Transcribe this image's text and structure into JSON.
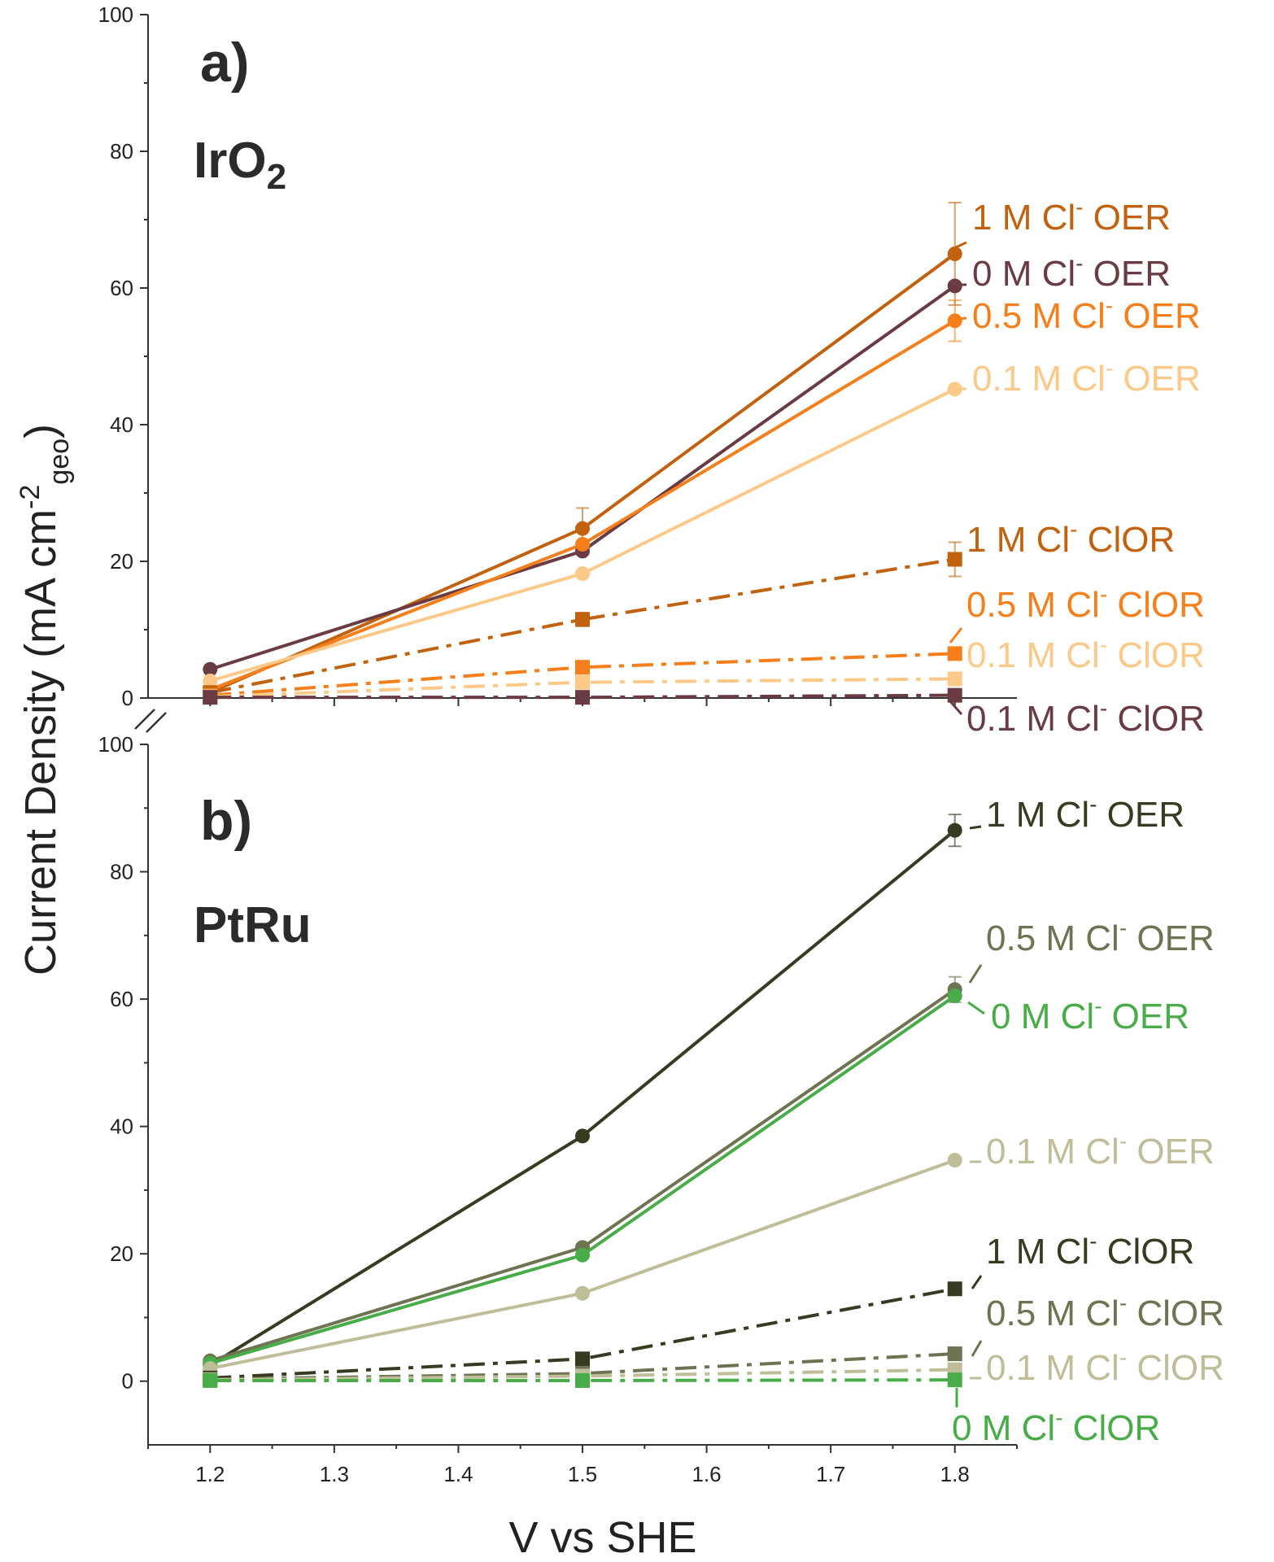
{
  "chart_data": {
    "type": "line",
    "xlabel": "V vs SHE",
    "ylabel_main": "Current Density (mA cm",
    "ylabel_sup": "-2",
    "ylabel_sub": "geo",
    "ylabel_close": ")",
    "x_ticks": [
      "1.2",
      "1.3",
      "1.4",
      "1.5",
      "1.6",
      "1.7",
      "1.8"
    ],
    "xlim": [
      1.15,
      1.85
    ],
    "panels": [
      {
        "letter": "a)",
        "name": "IrO",
        "name_sub": "2",
        "ylim": [
          0,
          100
        ],
        "y_ticks": [
          "0",
          "20",
          "40",
          "60",
          "80",
          "100"
        ],
        "series": [
          {
            "label_pre": "1 M Cl",
            "label_post": " OER",
            "color": "#c2620f",
            "style": "solid",
            "marker": "circle",
            "x": [
              1.2,
              1.5,
              1.8
            ],
            "y": [
              0.8,
              24.8,
              65.0
            ],
            "err": [
              0,
              3.0,
              7.5
            ]
          },
          {
            "label_pre": "0 M Cl",
            "label_post": " OER",
            "color": "#6b3b43",
            "style": "solid",
            "marker": "circle",
            "x": [
              1.2,
              1.5,
              1.8
            ],
            "y": [
              4.2,
              21.5,
              60.3
            ],
            "err": [
              0,
              0,
              0
            ]
          },
          {
            "label_pre": "0.5 M Cl",
            "label_post": " OER",
            "color": "#f77f1b",
            "style": "solid",
            "marker": "circle",
            "x": [
              1.2,
              1.5,
              1.8
            ],
            "y": [
              1.2,
              22.5,
              55.2
            ],
            "err": [
              0,
              0,
              3.0
            ]
          },
          {
            "label_pre": "0.1 M Cl",
            "label_post": " OER",
            "color": "#fcc989",
            "style": "solid",
            "marker": "circle",
            "x": [
              1.2,
              1.5,
              1.8
            ],
            "y": [
              2.5,
              18.2,
              45.2
            ],
            "err": [
              0,
              0,
              0
            ]
          },
          {
            "label_pre": "1 M Cl",
            "label_post": " ClOR",
            "color": "#c2620f",
            "style": "dashdot",
            "marker": "square",
            "x": [
              1.2,
              1.5,
              1.8
            ],
            "y": [
              0.8,
              11.5,
              20.3
            ],
            "err": [
              0,
              1.0,
              2.5
            ]
          },
          {
            "label_pre": "0.5 M Cl",
            "label_post": " ClOR",
            "color": "#f77f1b",
            "style": "dashdot",
            "marker": "square",
            "x": [
              1.2,
              1.5,
              1.8
            ],
            "y": [
              0.4,
              4.5,
              6.5
            ],
            "err": [
              0,
              0,
              0
            ]
          },
          {
            "label_pre": "0.1 M Cl",
            "label_post": " ClOR",
            "color": "#fcc989",
            "style": "dashdot",
            "marker": "square",
            "x": [
              1.2,
              1.5,
              1.8
            ],
            "y": [
              0.2,
              2.3,
              2.8
            ],
            "err": [
              0,
              0,
              0
            ]
          },
          {
            "label_pre": "0.1 M Cl",
            "label_post": " ClOR",
            "color": "#6b3b43",
            "style": "dashdot",
            "marker": "square",
            "x": [
              1.2,
              1.5,
              1.8
            ],
            "y": [
              0.1,
              0.1,
              0.4
            ],
            "err": [
              0,
              0,
              0
            ]
          }
        ]
      },
      {
        "letter": "b)",
        "name": "PtRu",
        "name_sub": "",
        "ylim": [
          -10,
          100
        ],
        "y_ticks": [
          "0",
          "20",
          "40",
          "60",
          "80",
          "100"
        ],
        "series": [
          {
            "label_pre": "1 M Cl",
            "label_post": " OER",
            "color": "#363c22",
            "style": "solid",
            "marker": "circle",
            "x": [
              1.2,
              1.5,
              1.8
            ],
            "y": [
              2.5,
              38.5,
              86.5
            ],
            "err": [
              0,
              0,
              2.5
            ]
          },
          {
            "label_pre": "0.5 M Cl",
            "label_post": " OER",
            "color": "#6e7352",
            "style": "solid",
            "marker": "circle",
            "x": [
              1.2,
              1.5,
              1.8
            ],
            "y": [
              3.2,
              21.0,
              61.5
            ],
            "err": [
              0,
              0,
              2.0
            ]
          },
          {
            "label_pre": "0 M Cl",
            "label_post": " OER",
            "color": "#48ad48",
            "style": "solid",
            "marker": "circle",
            "x": [
              1.2,
              1.5,
              1.8
            ],
            "y": [
              2.8,
              19.8,
              60.5
            ],
            "err": [
              0,
              0,
              0
            ]
          },
          {
            "label_pre": "0.1 M Cl",
            "label_post": " OER",
            "color": "#c0bd99",
            "style": "solid",
            "marker": "circle",
            "x": [
              1.2,
              1.5,
              1.8
            ],
            "y": [
              2.0,
              13.8,
              34.7
            ],
            "err": [
              0,
              0,
              0
            ]
          },
          {
            "label_pre": "1 M Cl",
            "label_post": " ClOR",
            "color": "#363c22",
            "style": "dashdot",
            "marker": "square",
            "x": [
              1.2,
              1.5,
              1.8
            ],
            "y": [
              0.5,
              3.5,
              14.5
            ],
            "err": [
              0,
              0,
              0
            ]
          },
          {
            "label_pre": "0.5 M Cl",
            "label_post": " ClOR",
            "color": "#6e7352",
            "style": "dashdot",
            "marker": "square",
            "x": [
              1.2,
              1.5,
              1.8
            ],
            "y": [
              0.3,
              1.2,
              4.3
            ],
            "err": [
              0,
              0,
              0
            ]
          },
          {
            "label_pre": "0.1 M Cl",
            "label_post": " ClOR",
            "color": "#c0bd99",
            "style": "dashdot",
            "marker": "square",
            "x": [
              1.2,
              1.5,
              1.8
            ],
            "y": [
              0.2,
              0.8,
              1.8
            ],
            "err": [
              0,
              0,
              0
            ]
          },
          {
            "label_pre": "0 M Cl",
            "label_post": " ClOR",
            "color": "#48ad48",
            "style": "dashdot",
            "marker": "square",
            "x": [
              1.2,
              1.5,
              1.8
            ],
            "y": [
              0.1,
              0.1,
              0.2
            ],
            "err": [
              0,
              0,
              0
            ]
          }
        ]
      }
    ]
  }
}
